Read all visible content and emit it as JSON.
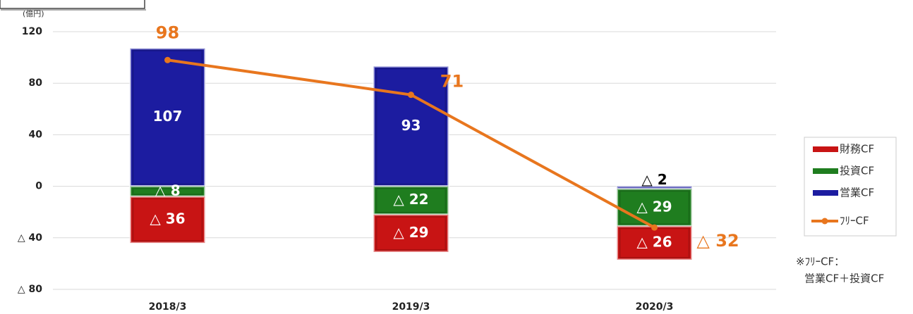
{
  "chart_data": {
    "type": "stacked-bar-line",
    "unit_label": "(億円)",
    "categories": [
      "2018/3",
      "2019/3",
      "2020/3"
    ],
    "ylim": [
      -80,
      120
    ],
    "yticks": [
      {
        "value": -80,
        "label": "△ 80"
      },
      {
        "value": -40,
        "label": "△ 40"
      },
      0,
      40,
      80,
      120
    ],
    "grid": true,
    "legend": "right",
    "series": [
      {
        "name": "財務CF",
        "color": "#c81414",
        "values": [
          -36,
          -29,
          -26
        ],
        "value_labels": [
          "△ 36",
          "△ 29",
          "△ 26"
        ]
      },
      {
        "name": "投資CF",
        "color": "#1f7d1f",
        "values": [
          -8,
          -22,
          -29
        ],
        "value_labels": [
          "△ 8",
          "△ 22",
          "△ 29"
        ]
      },
      {
        "name": "営業CF",
        "color": "#1c1ca0",
        "values": [
          107,
          93,
          -2
        ],
        "value_labels": [
          "107",
          "93",
          "△ 2"
        ]
      },
      {
        "name": "ﾌﾘｰCF",
        "color": "#e8761e",
        "type": "line",
        "values": [
          98,
          71,
          -32
        ],
        "value_labels": [
          "98",
          "71",
          "△ 32"
        ]
      }
    ],
    "note": [
      "※ﾌﾘｰCF：",
      "営業CF＋投資CF"
    ]
  }
}
